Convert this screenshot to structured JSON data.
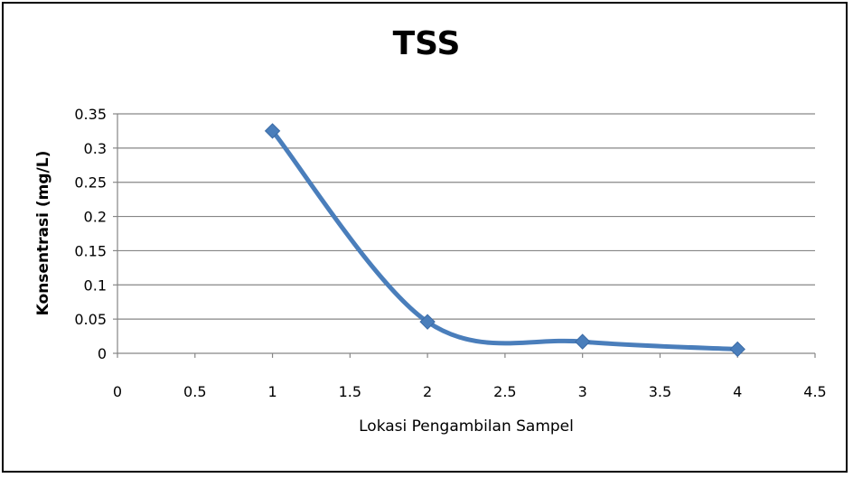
{
  "chart_data": {
    "type": "scatter",
    "title": "TSS",
    "xlabel": "Lokasi Pengambilan  Sampel",
    "ylabel": "Konsentrasi (mg/L)",
    "xlim": [
      0,
      4.5
    ],
    "ylim": [
      0,
      0.35
    ],
    "xticks": [
      "0",
      "0.5",
      "1",
      "1.5",
      "2",
      "2.5",
      "3",
      "3.5",
      "4",
      "4.5"
    ],
    "yticks": [
      "0",
      "0.05",
      "0.1",
      "0.15",
      "0.2",
      "0.25",
      "0.3",
      "0.35"
    ],
    "grid": "horizontal",
    "legend": "none",
    "line_style": "smooth",
    "series": [
      {
        "x": [
          1,
          2,
          3,
          4
        ],
        "y": [
          0.325,
          0.046,
          0.017,
          0.006
        ],
        "color": "#4a7ebb",
        "marker": "diamond"
      }
    ]
  }
}
